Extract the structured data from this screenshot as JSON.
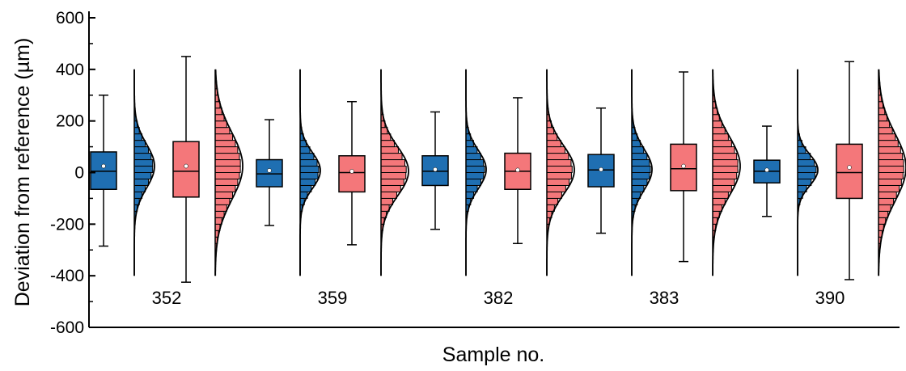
{
  "chart_data": {
    "type": "box",
    "title": "",
    "xlabel": "Sample no.",
    "ylabel": "Deviation from reference (µm)",
    "ylim": [
      -600,
      600
    ],
    "yticks": [
      -600,
      -400,
      -200,
      0,
      200,
      400,
      600
    ],
    "grid": false,
    "colors": {
      "blue": "#1f6fb2",
      "red": "#f4777a",
      "edge": "#000000"
    },
    "histogram_range": [
      -400,
      400
    ],
    "categories": [
      "352",
      "359",
      "382",
      "383",
      "390"
    ],
    "series": [
      {
        "color": "blue",
        "boxes": [
          {
            "whisker_low": -285,
            "q1": -65,
            "median": 5,
            "q3": 80,
            "whisker_high": 300,
            "mean": 25,
            "sd": 85
          },
          {
            "whisker_low": -205,
            "q1": -55,
            "median": -5,
            "q3": 50,
            "whisker_high": 205,
            "mean": 8,
            "sd": 70
          },
          {
            "whisker_low": -220,
            "q1": -50,
            "median": 5,
            "q3": 65,
            "whisker_high": 235,
            "mean": 12,
            "sd": 75
          },
          {
            "whisker_low": -235,
            "q1": -55,
            "median": 10,
            "q3": 70,
            "whisker_high": 250,
            "mean": 12,
            "sd": 80
          },
          {
            "whisker_low": -170,
            "q1": -40,
            "median": 5,
            "q3": 48,
            "whisker_high": 180,
            "mean": 10,
            "sd": 60
          }
        ]
      },
      {
        "color": "red",
        "boxes": [
          {
            "whisker_low": -425,
            "q1": -95,
            "median": 5,
            "q3": 120,
            "whisker_high": 450,
            "mean": 25,
            "sd": 130
          },
          {
            "whisker_low": -280,
            "q1": -75,
            "median": 0,
            "q3": 65,
            "whisker_high": 275,
            "mean": 5,
            "sd": 95
          },
          {
            "whisker_low": -275,
            "q1": -65,
            "median": 5,
            "q3": 75,
            "whisker_high": 290,
            "mean": 10,
            "sd": 95
          },
          {
            "whisker_low": -345,
            "q1": -70,
            "median": 15,
            "q3": 110,
            "whisker_high": 390,
            "mean": 25,
            "sd": 115
          },
          {
            "whisker_low": -415,
            "q1": -100,
            "median": 0,
            "q3": 110,
            "whisker_high": 430,
            "mean": 20,
            "sd": 130
          }
        ]
      }
    ]
  }
}
